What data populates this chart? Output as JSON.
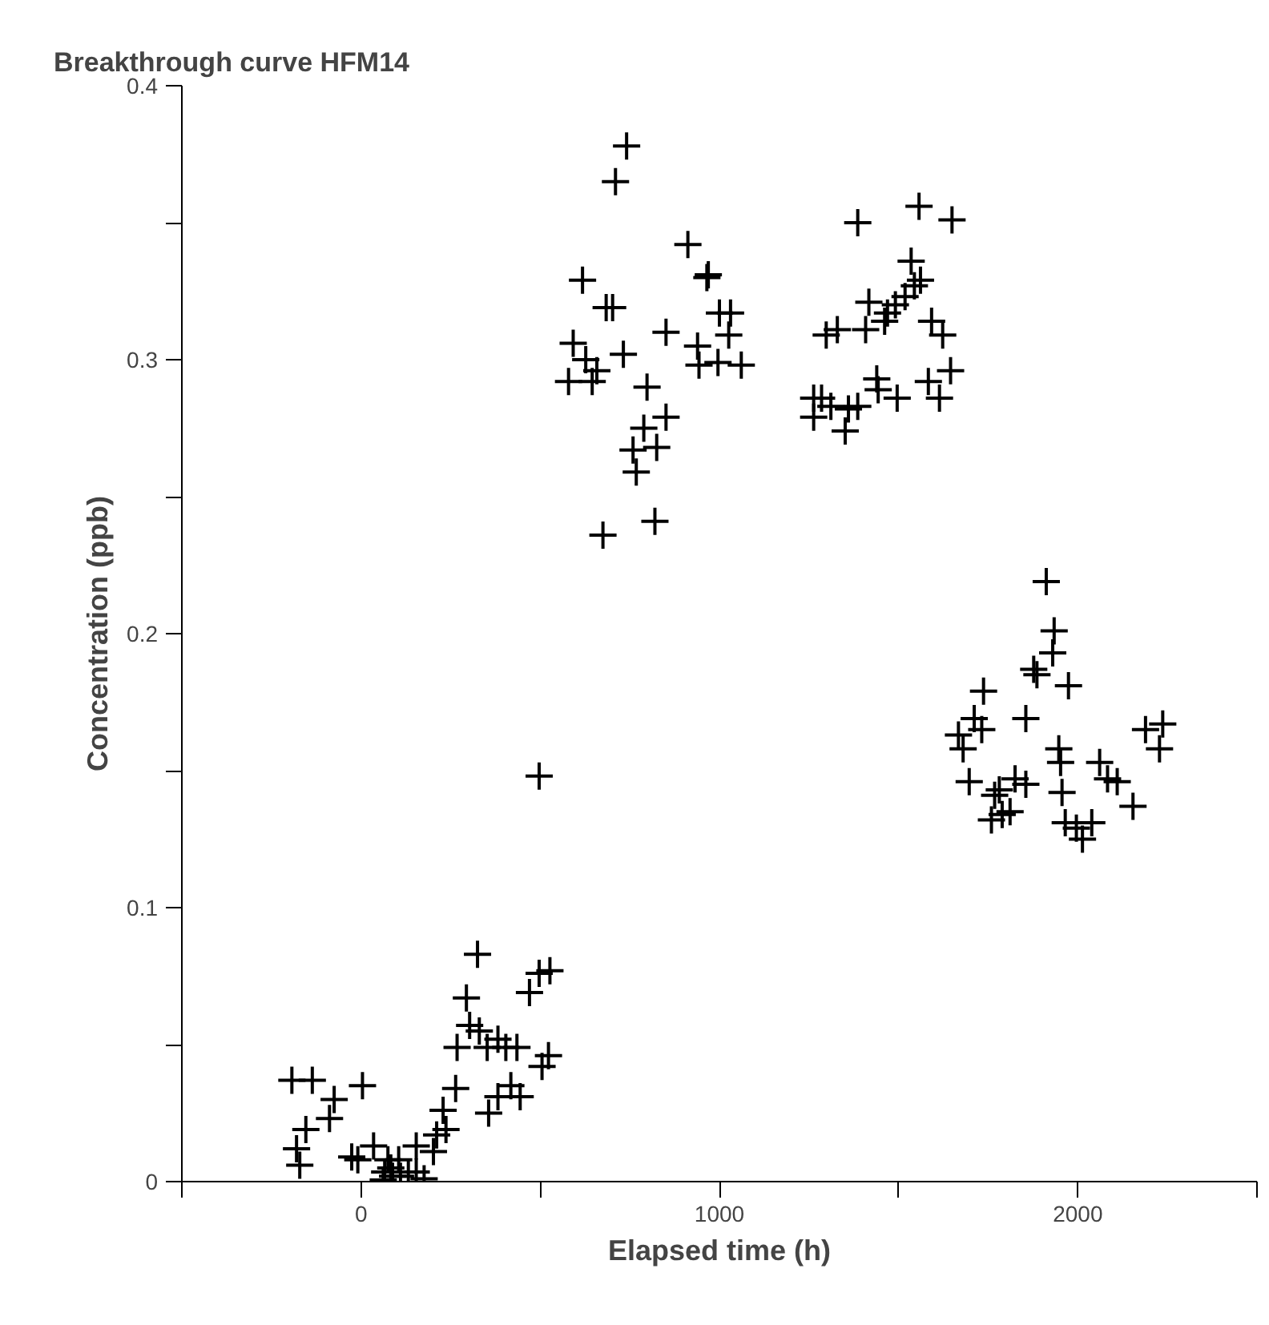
{
  "chart_data": {
    "type": "scatter",
    "title": "Breakthrough curve HFM14",
    "xlabel": "Elapsed time (h)",
    "ylabel": "Concentration (ppb)",
    "xlim": [
      -500,
      2500
    ],
    "ylim": [
      0,
      0.4
    ],
    "xticks": [
      {
        "value": -500,
        "label": null
      },
      0,
      {
        "value": 500,
        "label": null
      },
      1000,
      {
        "value": 1500,
        "label": null
      },
      2000,
      {
        "value": 2500,
        "label": null
      }
    ],
    "yticks": [
      0,
      {
        "value": 0.05,
        "label": null
      },
      0.1,
      {
        "value": 0.15,
        "label": null
      },
      0.2,
      {
        "value": 0.25,
        "label": null
      },
      0.3,
      {
        "value": 0.35,
        "label": null
      },
      0.4
    ],
    "grid": false,
    "marker": "cross",
    "series": [
      {
        "color": "#000000",
        "x": [
          -193,
          -136,
          -75,
          -88,
          4,
          -154,
          -180,
          -171,
          -26,
          -9,
          35,
          66,
          83,
          88,
          105,
          110,
          132,
          154,
          176,
          154,
          62,
          75,
          202,
          211,
          237,
          229,
          264,
          268,
          294,
          325,
          303,
          330,
          356,
          352,
          382,
          404,
          435,
          382,
          418,
          444,
          470,
          497,
          527,
          505,
          523,
          497,
          741,
          710,
          912,
          969,
          965,
          618,
          684,
          702,
          1000,
          1031,
          1026,
          851,
          592,
          627,
          732,
          939,
          658,
          579,
          645,
          943,
          996,
          1061,
          798,
          851,
          789,
          759,
          825,
          768,
          820,
          675,
          1386,
          1557,
          1649,
          1535,
          1561,
          1544,
          1518,
          1491,
          1469,
          1417,
          1461,
          1408,
          1329,
          1298,
          1592,
          1623,
          1263,
          1285,
          1311,
          1263,
          1351,
          1360,
          1386,
          1439,
          1443,
          1496,
          1583,
          1614,
          1645,
          1912,
          1934,
          1930,
          1877,
          1886,
          1974,
          1737,
          1711,
          1855,
          1732,
          1667,
          1680,
          2237,
          2189,
          2228,
          1947,
          1952,
          2061,
          1697,
          1825,
          1855,
          2083,
          2110,
          1956,
          1768,
          1781,
          2154,
          1811,
          1789,
          1759,
          1965,
          1996,
          2039,
          2013
        ],
        "values": [
          0.037,
          0.037,
          0.03,
          0.023,
          0.035,
          0.019,
          0.012,
          0.006,
          0.009,
          0.008,
          0.013,
          0.0035,
          0.005,
          0.002,
          0.008,
          0.002,
          0.0035,
          0.0035,
          0.001,
          0.013,
          0.0006,
          0.008,
          0.011,
          0.017,
          0.019,
          0.026,
          0.034,
          0.049,
          0.067,
          0.083,
          0.057,
          0.055,
          0.025,
          0.049,
          0.052,
          0.049,
          0.049,
          0.031,
          0.035,
          0.031,
          0.069,
          0.076,
          0.077,
          0.042,
          0.046,
          0.148,
          0.378,
          0.365,
          0.342,
          0.331,
          0.33,
          0.329,
          0.319,
          0.319,
          0.317,
          0.317,
          0.309,
          0.31,
          0.306,
          0.3,
          0.302,
          0.305,
          0.296,
          0.292,
          0.292,
          0.298,
          0.299,
          0.298,
          0.29,
          0.279,
          0.275,
          0.267,
          0.268,
          0.259,
          0.241,
          0.236,
          0.35,
          0.356,
          0.351,
          0.336,
          0.329,
          0.327,
          0.323,
          0.32,
          0.317,
          0.321,
          0.314,
          0.311,
          0.311,
          0.309,
          0.314,
          0.309,
          0.286,
          0.286,
          0.283,
          0.279,
          0.274,
          0.282,
          0.283,
          0.293,
          0.289,
          0.286,
          0.292,
          0.286,
          0.296,
          0.219,
          0.201,
          0.193,
          0.187,
          0.185,
          0.181,
          0.179,
          0.169,
          0.169,
          0.165,
          0.163,
          0.158,
          0.167,
          0.165,
          0.158,
          0.158,
          0.153,
          0.153,
          0.146,
          0.147,
          0.145,
          0.147,
          0.146,
          0.142,
          0.141,
          0.143,
          0.137,
          0.135,
          0.134,
          0.132,
          0.131,
          0.129,
          0.131,
          0.125
        ]
      }
    ]
  }
}
